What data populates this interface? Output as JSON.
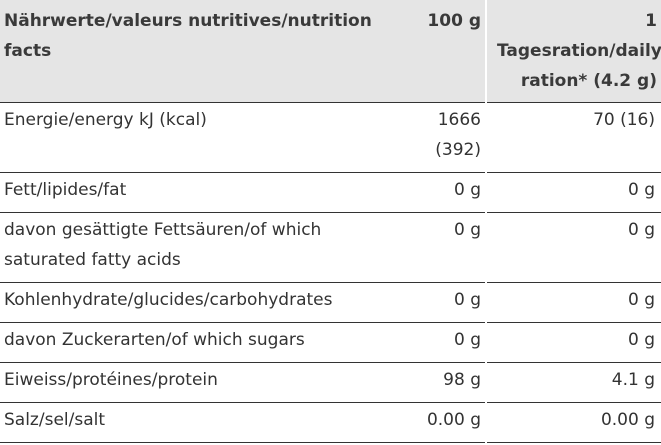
{
  "header": {
    "col_label": "Nährwerte/valeurs nutritives/nutrition facts",
    "col_per100": "100 g",
    "col_ration_line1": "1",
    "col_ration_line2": "Tagesration/daily ration* (4.2 g)"
  },
  "rows": [
    {
      "label": "Energie/energy kJ (kcal)",
      "per100_line1": "1666",
      "per100_line2": "(392)",
      "ration": "70 (16)"
    },
    {
      "label": "Fett/lipides/fat",
      "per100": "0 g",
      "ration": "0 g"
    },
    {
      "label": "davon gesättigte Fettsäuren/of which saturated fatty acids",
      "per100": "0 g",
      "ration": "0 g"
    },
    {
      "label": "Kohlenhydrate/glucides/carbohydrates",
      "per100": "0 g",
      "ration": "0 g"
    },
    {
      "label": "davon Zuckerarten/of which sugars",
      "per100": "0 g",
      "ration": "0 g"
    },
    {
      "label": "Eiweiss/protéines/protein",
      "per100": "98 g",
      "ration": "4.1 g"
    },
    {
      "label": "Salz/sel/salt",
      "per100": "0.00 g",
      "ration": "0.00 g"
    }
  ],
  "colors": {
    "header_bg": "#e5e5e5",
    "text": "#333333",
    "rule": "#333333"
  }
}
